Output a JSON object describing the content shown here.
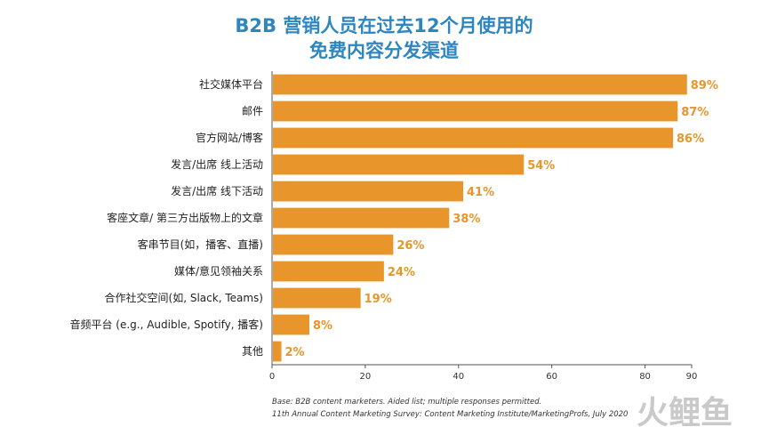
{
  "chart_data": {
    "type": "bar",
    "orientation": "horizontal",
    "title_lines": [
      "B2B 营销人员在过去12个月使用的",
      "免费内容分发渠道"
    ],
    "categories": [
      "社交媒体平台",
      "邮件",
      "官方网站/博客",
      "发言/出席 线上活动",
      "发言/出席 线下活动",
      "客座文章/ 第三方出版物上的文章",
      "客串节目(如，播客、直播)",
      "媒体/意见领袖关系",
      "合作社交空间(如, Slack, Teams)",
      "音频平台 (e.g., Audible, Spotify, 播客)",
      "其他"
    ],
    "values": [
      89,
      87,
      86,
      54,
      41,
      38,
      26,
      24,
      19,
      8,
      2
    ],
    "value_labels": [
      "89%",
      "87%",
      "86%",
      "54%",
      "41%",
      "38%",
      "26%",
      "24%",
      "19%",
      "8%",
      "2%"
    ],
    "xlim": [
      0,
      90
    ],
    "xticks": [
      "0",
      "20",
      "40",
      "60",
      "80",
      "90"
    ],
    "bar_color": "#e8952b",
    "label_color": "#e8952b",
    "title_color": "#2e86c1",
    "grid": false,
    "legend": "none"
  },
  "notes": [
    "Base: B2B content marketers. Aided list; multiple responses permitted.",
    "11th Annual Content Marketing Survey: Content Marketing Institute/MarketingProfs, July 2020"
  ],
  "watermark": "火鲤鱼"
}
